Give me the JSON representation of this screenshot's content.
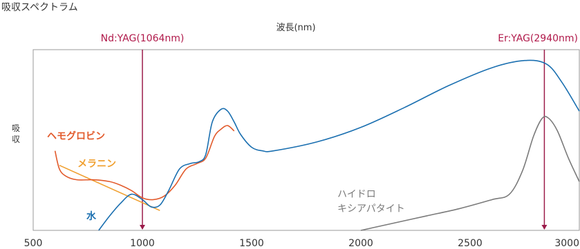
{
  "chart_data": {
    "type": "line",
    "title": "吸収スペクトラム",
    "xlabel": "波長(nm)",
    "ylabel": "吸収",
    "xlim": [
      500,
      3000
    ],
    "xticks": [
      500,
      1000,
      1500,
      2000,
      2500,
      3000
    ],
    "ylim": [
      0,
      1
    ],
    "grid": false,
    "markers": [
      {
        "label": "Nd:YAG(1064nm)",
        "x": 1000
      },
      {
        "label": "Er:YAG(2940nm)",
        "x": 2840
      }
    ],
    "series": [
      {
        "name": "水",
        "color": "#1a6fb0",
        "points": [
          [
            800,
            0
          ],
          [
            850,
            0.08
          ],
          [
            900,
            0.15
          ],
          [
            950,
            0.2
          ],
          [
            1000,
            0.17
          ],
          [
            1040,
            0.13
          ],
          [
            1080,
            0.14
          ],
          [
            1120,
            0.22
          ],
          [
            1170,
            0.34
          ],
          [
            1220,
            0.37
          ],
          [
            1260,
            0.38
          ],
          [
            1290,
            0.42
          ],
          [
            1320,
            0.6
          ],
          [
            1360,
            0.67
          ],
          [
            1390,
            0.66
          ],
          [
            1420,
            0.6
          ],
          [
            1450,
            0.53
          ],
          [
            1500,
            0.46
          ],
          [
            1550,
            0.44
          ],
          [
            1600,
            0.44
          ],
          [
            1800,
            0.49
          ],
          [
            2000,
            0.57
          ],
          [
            2200,
            0.68
          ],
          [
            2400,
            0.8
          ],
          [
            2600,
            0.9
          ],
          [
            2750,
            0.94
          ],
          [
            2850,
            0.92
          ],
          [
            2920,
            0.82
          ],
          [
            3000,
            0.66
          ]
        ]
      },
      {
        "name": "ヘモグロビン",
        "color": "#e25a2b",
        "points": [
          [
            600,
            0.44
          ],
          [
            620,
            0.34
          ],
          [
            650,
            0.3
          ],
          [
            700,
            0.28
          ],
          [
            780,
            0.28
          ],
          [
            850,
            0.27
          ],
          [
            900,
            0.25
          ],
          [
            950,
            0.22
          ],
          [
            1000,
            0.18
          ],
          [
            1050,
            0.17
          ],
          [
            1100,
            0.19
          ],
          [
            1150,
            0.25
          ],
          [
            1200,
            0.34
          ],
          [
            1250,
            0.37
          ],
          [
            1290,
            0.4
          ],
          [
            1330,
            0.52
          ],
          [
            1360,
            0.56
          ],
          [
            1390,
            0.58
          ],
          [
            1420,
            0.55
          ]
        ]
      },
      {
        "name": "メラニン",
        "color": "#f0a030",
        "points": [
          [
            620,
            0.36
          ],
          [
            1080,
            0.11
          ]
        ]
      },
      {
        "name": "ハイドロキシアパタイト",
        "color": "#7a7a7a",
        "points": [
          [
            2000,
            0
          ],
          [
            2150,
            0.04
          ],
          [
            2300,
            0.08
          ],
          [
            2450,
            0.12
          ],
          [
            2600,
            0.17
          ],
          [
            2680,
            0.2
          ],
          [
            2740,
            0.33
          ],
          [
            2790,
            0.52
          ],
          [
            2830,
            0.62
          ],
          [
            2860,
            0.62
          ],
          [
            2900,
            0.55
          ],
          [
            2950,
            0.4
          ],
          [
            3000,
            0.27
          ]
        ]
      }
    ]
  }
}
